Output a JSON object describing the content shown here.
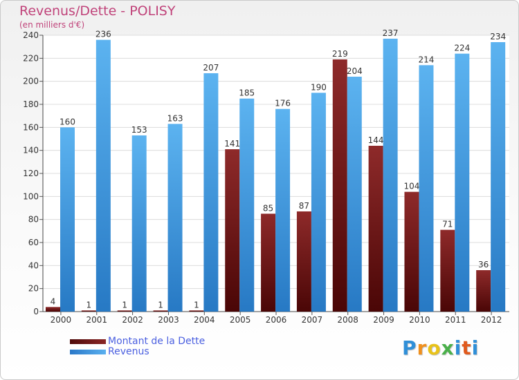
{
  "chart_data": {
    "type": "bar",
    "title": "Revenus/Dette - POLISY",
    "subtitle": "(en milliers d'€)",
    "categories": [
      "2000",
      "2001",
      "2002",
      "2003",
      "2004",
      "2005",
      "2006",
      "2007",
      "2008",
      "2009",
      "2010",
      "2011",
      "2012"
    ],
    "series": [
      {
        "name": "Montant de la Dette",
        "color": "#7a1a1a",
        "values": [
          4,
          1,
          1,
          1,
          1,
          141,
          85,
          87,
          219,
          144,
          104,
          71,
          36
        ]
      },
      {
        "name": "Revenus",
        "color": "#3f9ee6",
        "values": [
          160,
          236,
          153,
          163,
          207,
          185,
          176,
          190,
          204,
          237,
          214,
          224,
          234
        ]
      }
    ],
    "ylim": [
      0,
      240
    ],
    "yticks": [
      0,
      20,
      40,
      60,
      80,
      100,
      120,
      140,
      160,
      180,
      200,
      220,
      240
    ],
    "grid": true,
    "legend": "bottom-left"
  },
  "logo": {
    "letters": [
      {
        "ch": "P",
        "color": "#2f8fd8"
      },
      {
        "ch": "r",
        "color": "#f0901e"
      },
      {
        "ch": "o",
        "color": "#e8c21a"
      },
      {
        "ch": "x",
        "color": "#4ab04a"
      },
      {
        "ch": "i",
        "color": "#2f8fd8"
      },
      {
        "ch": "t",
        "color": "#e05a1e"
      },
      {
        "ch": "i",
        "color": "#2f8fd8"
      }
    ]
  }
}
